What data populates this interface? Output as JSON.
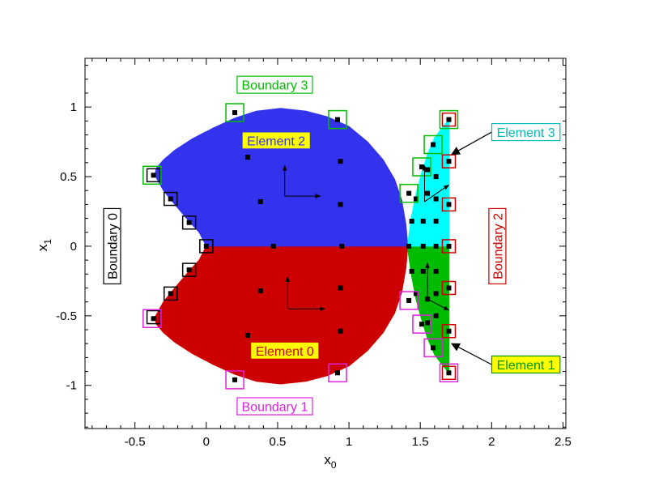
{
  "colors": {
    "element_0": "#cc0000",
    "element_1": "#00bb00",
    "element_2": "#3333ee",
    "element_3": "#00ffff",
    "boundary_0": "#000000",
    "boundary_1": "#dd22dd",
    "boundary_2": "#cc0000",
    "boundary_3": "#00bb00",
    "label_bg": "#ffff00",
    "axes": "#000000"
  },
  "chart_data": {
    "type": "scatter",
    "xlabel": "x",
    "xlabel_sub": "0",
    "ylabel": "x",
    "ylabel_sub": "1",
    "xlim": [
      -0.85,
      2.52
    ],
    "ylim": [
      -1.31,
      1.35
    ],
    "x_ticks": [
      {
        "value": -0.5,
        "label": "-0.5"
      },
      {
        "value": 0,
        "label": "0"
      },
      {
        "value": 0.5,
        "label": "0.5"
      },
      {
        "value": 1,
        "label": "1"
      },
      {
        "value": 1.5,
        "label": "1.5"
      },
      {
        "value": 2,
        "label": "2"
      },
      {
        "value": 2.5,
        "label": "2.5"
      }
    ],
    "y_ticks": [
      {
        "value": 1,
        "label": "1"
      },
      {
        "value": 0.5,
        "label": "0.5"
      },
      {
        "value": 0,
        "label": "0"
      },
      {
        "value": -0.5,
        "label": "-0.5"
      },
      {
        "value": -1,
        "label": "-1"
      }
    ],
    "elements": [
      {
        "name": "Element 0",
        "color_key": "element_0",
        "label": {
          "text": "Element 0",
          "x": 0.55,
          "y": -0.75,
          "text_color": "#cc0000",
          "bg": true,
          "border": "#cc0000"
        },
        "polygon": [
          [
            0,
            0
          ],
          [
            1.41,
            0
          ],
          [
            1.41,
            -0.02
          ],
          [
            1.4,
            -0.15
          ],
          [
            1.37,
            -0.33
          ],
          [
            1.32,
            -0.48
          ],
          [
            1.24,
            -0.62
          ],
          [
            1.13,
            -0.75
          ],
          [
            1.0,
            -0.86
          ],
          [
            0.85,
            -0.93
          ],
          [
            0.7,
            -0.97
          ],
          [
            0.52,
            -0.99
          ],
          [
            0.35,
            -0.97
          ],
          [
            0.2,
            -0.92
          ],
          [
            0.05,
            -0.85
          ],
          [
            -0.1,
            -0.77
          ],
          [
            -0.22,
            -0.69
          ],
          [
            -0.3,
            -0.62
          ],
          [
            -0.35,
            -0.56
          ],
          [
            -0.36,
            -0.51
          ],
          [
            -0.3,
            -0.4
          ],
          [
            -0.22,
            -0.3
          ],
          [
            -0.13,
            -0.19
          ],
          [
            -0.05,
            -0.1
          ],
          [
            0,
            0
          ]
        ],
        "arrows": [
          {
            "from": [
              0.57,
              -0.45
            ],
            "to": [
              0.57,
              -0.22
            ]
          },
          {
            "from": [
              0.57,
              -0.45
            ],
            "to": [
              0.83,
              -0.45
            ]
          }
        ]
      },
      {
        "name": "Element 1",
        "color_key": "element_1",
        "label": {
          "text": "Element 1",
          "x": 2.24,
          "y": -0.85,
          "text_color": "#009900",
          "bg": true,
          "border": "#009900"
        },
        "polygon": [
          [
            1.41,
            0
          ],
          [
            1.7,
            0
          ],
          [
            1.7,
            -0.91
          ],
          [
            1.66,
            -0.86
          ],
          [
            1.6,
            -0.78
          ],
          [
            1.55,
            -0.66
          ],
          [
            1.51,
            -0.53
          ],
          [
            1.47,
            -0.38
          ],
          [
            1.44,
            -0.22
          ],
          [
            1.42,
            -0.08
          ],
          [
            1.41,
            0
          ]
        ],
        "arrows": [
          {
            "from": [
              1.55,
              -0.38
            ],
            "to": [
              1.55,
              -0.12
            ]
          },
          {
            "from": [
              1.55,
              -0.38
            ],
            "to": [
              1.7,
              -0.46
            ]
          }
        ]
      },
      {
        "name": "Element 2",
        "color_key": "element_2",
        "label": {
          "text": "Element 2",
          "x": 0.49,
          "y": 0.76,
          "text_color": "#3333ee",
          "bg": true,
          "border": "#3333ee"
        },
        "polygon": [
          [
            0,
            0
          ],
          [
            -0.05,
            0.1
          ],
          [
            -0.13,
            0.19
          ],
          [
            -0.22,
            0.3
          ],
          [
            -0.3,
            0.4
          ],
          [
            -0.36,
            0.51
          ],
          [
            -0.35,
            0.56
          ],
          [
            -0.3,
            0.62
          ],
          [
            -0.22,
            0.69
          ],
          [
            -0.1,
            0.77
          ],
          [
            0.05,
            0.85
          ],
          [
            0.2,
            0.92
          ],
          [
            0.35,
            0.97
          ],
          [
            0.52,
            0.99
          ],
          [
            0.7,
            0.97
          ],
          [
            0.85,
            0.93
          ],
          [
            1.0,
            0.86
          ],
          [
            1.13,
            0.75
          ],
          [
            1.24,
            0.62
          ],
          [
            1.32,
            0.48
          ],
          [
            1.37,
            0.33
          ],
          [
            1.4,
            0.15
          ],
          [
            1.41,
            0.02
          ],
          [
            1.41,
            0
          ],
          [
            0,
            0
          ]
        ],
        "arrows": [
          {
            "from": [
              0.55,
              0.36
            ],
            "to": [
              0.55,
              0.58
            ]
          },
          {
            "from": [
              0.55,
              0.36
            ],
            "to": [
              0.8,
              0.36
            ]
          }
        ]
      },
      {
        "name": "Element 3",
        "color_key": "element_3",
        "label": {
          "text": "Element 3",
          "x": 2.24,
          "y": 0.82,
          "text_color": "#00bbbb",
          "bg": false,
          "border": "#00bbbb"
        },
        "polygon": [
          [
            1.41,
            0
          ],
          [
            1.42,
            0.08
          ],
          [
            1.44,
            0.22
          ],
          [
            1.47,
            0.38
          ],
          [
            1.51,
            0.53
          ],
          [
            1.55,
            0.66
          ],
          [
            1.6,
            0.78
          ],
          [
            1.66,
            0.86
          ],
          [
            1.7,
            0.91
          ],
          [
            1.7,
            0
          ],
          [
            1.41,
            0
          ]
        ],
        "arrows": [
          {
            "from": [
              1.53,
              0.32
            ],
            "to": [
              1.53,
              0.58
            ]
          },
          {
            "from": [
              1.53,
              0.32
            ],
            "to": [
              1.7,
              0.44
            ]
          }
        ]
      }
    ],
    "boundaries": [
      {
        "name": "Boundary 0",
        "text": "Boundary 0",
        "color_key": "boundary_0",
        "label_x": -0.66,
        "label_y": 0.0,
        "vertical": true
      },
      {
        "name": "Boundary 1",
        "text": "Boundary 1",
        "color_key": "boundary_1",
        "label_x": 0.48,
        "label_y": -1.15,
        "vertical": false
      },
      {
        "name": "Boundary 2",
        "text": "Boundary 2",
        "color_key": "boundary_2",
        "label_x": 2.04,
        "label_y": 0.0,
        "vertical": true
      },
      {
        "name": "Boundary 3",
        "text": "Boundary 3",
        "color_key": "boundary_3",
        "label_x": 0.48,
        "label_y": 1.16,
        "vertical": false
      }
    ],
    "boundary_markers": [
      {
        "x": 0,
        "y": 0,
        "color_key": "boundary_0"
      },
      {
        "x": -0.12,
        "y": 0.17,
        "color_key": "boundary_0"
      },
      {
        "x": -0.25,
        "y": 0.34,
        "color_key": "boundary_0"
      },
      {
        "x": -0.37,
        "y": 0.51,
        "color_key": "boundary_0"
      },
      {
        "x": -0.12,
        "y": -0.17,
        "color_key": "boundary_0"
      },
      {
        "x": -0.25,
        "y": -0.34,
        "color_key": "boundary_0"
      },
      {
        "x": -0.37,
        "y": -0.51,
        "color_key": "boundary_0"
      },
      {
        "x": -0.38,
        "y": 0.51,
        "color_key": "boundary_3"
      },
      {
        "x": 0.2,
        "y": 0.96,
        "color_key": "boundary_3"
      },
      {
        "x": 0.92,
        "y": 0.91,
        "color_key": "boundary_3"
      },
      {
        "x": 1.42,
        "y": 0.38,
        "color_key": "boundary_3"
      },
      {
        "x": 1.51,
        "y": 0.57,
        "color_key": "boundary_3"
      },
      {
        "x": 1.59,
        "y": 0.73,
        "color_key": "boundary_3"
      },
      {
        "x": 1.7,
        "y": 0.91,
        "color_key": "boundary_3"
      },
      {
        "x": -0.38,
        "y": -0.52,
        "color_key": "boundary_1"
      },
      {
        "x": 0.2,
        "y": -0.96,
        "color_key": "boundary_1"
      },
      {
        "x": 0.92,
        "y": -0.91,
        "color_key": "boundary_1"
      },
      {
        "x": 1.42,
        "y": -0.39,
        "color_key": "boundary_1"
      },
      {
        "x": 1.51,
        "y": -0.56,
        "color_key": "boundary_1"
      },
      {
        "x": 1.59,
        "y": -0.73,
        "color_key": "boundary_1"
      },
      {
        "x": 1.7,
        "y": -0.91,
        "color_key": "boundary_1"
      },
      {
        "x": 1.7,
        "y": 0.91,
        "color_key": "boundary_2"
      },
      {
        "x": 1.7,
        "y": 0.61,
        "color_key": "boundary_2"
      },
      {
        "x": 1.7,
        "y": 0.3,
        "color_key": "boundary_2"
      },
      {
        "x": 1.7,
        "y": 0.0,
        "color_key": "boundary_2"
      },
      {
        "x": 1.7,
        "y": -0.3,
        "color_key": "boundary_2"
      },
      {
        "x": 1.7,
        "y": -0.61,
        "color_key": "boundary_2"
      },
      {
        "x": 1.7,
        "y": -0.91,
        "color_key": "boundary_2"
      }
    ],
    "nodes": [
      [
        0,
        0
      ],
      [
        0.47,
        0
      ],
      [
        0.95,
        0
      ],
      [
        1.42,
        0
      ],
      [
        1.52,
        0
      ],
      [
        1.61,
        0
      ],
      [
        1.7,
        0
      ],
      [
        -0.12,
        0.17
      ],
      [
        -0.25,
        0.34
      ],
      [
        -0.37,
        0.51
      ],
      [
        0.2,
        0.96
      ],
      [
        0.92,
        0.91
      ],
      [
        0.29,
        0.64
      ],
      [
        0.38,
        0.32
      ],
      [
        0.94,
        0.61
      ],
      [
        0.94,
        0.3
      ],
      [
        1.42,
        0.38
      ],
      [
        1.51,
        0.57
      ],
      [
        1.59,
        0.73
      ],
      [
        1.7,
        0.91
      ],
      [
        1.7,
        0.61
      ],
      [
        1.7,
        0.3
      ],
      [
        1.55,
        0.55
      ],
      [
        1.61,
        0.5
      ],
      [
        1.44,
        0.18
      ],
      [
        1.52,
        0.18
      ],
      [
        1.61,
        0.18
      ],
      [
        1.47,
        0.34
      ],
      [
        1.55,
        0.38
      ],
      [
        1.61,
        0.34
      ],
      [
        -0.12,
        -0.17
      ],
      [
        -0.25,
        -0.34
      ],
      [
        -0.37,
        -0.52
      ],
      [
        0.2,
        -0.96
      ],
      [
        0.92,
        -0.91
      ],
      [
        0.29,
        -0.64
      ],
      [
        0.38,
        -0.32
      ],
      [
        0.94,
        -0.61
      ],
      [
        0.94,
        -0.3
      ],
      [
        1.42,
        -0.39
      ],
      [
        1.51,
        -0.56
      ],
      [
        1.59,
        -0.73
      ],
      [
        1.7,
        -0.91
      ],
      [
        1.7,
        -0.61
      ],
      [
        1.7,
        -0.3
      ],
      [
        1.55,
        -0.55
      ],
      [
        1.61,
        -0.5
      ],
      [
        1.44,
        -0.18
      ],
      [
        1.52,
        -0.18
      ],
      [
        1.61,
        -0.18
      ],
      [
        1.47,
        -0.34
      ],
      [
        1.55,
        -0.38
      ],
      [
        1.61,
        -0.34
      ]
    ],
    "callouts": [
      {
        "target": "Element 3",
        "from": [
          2.0,
          0.82
        ],
        "to": [
          1.72,
          0.66
        ]
      },
      {
        "target": "Element 1",
        "from": [
          2.0,
          -0.85
        ],
        "to": [
          1.72,
          -0.7
        ]
      }
    ]
  }
}
